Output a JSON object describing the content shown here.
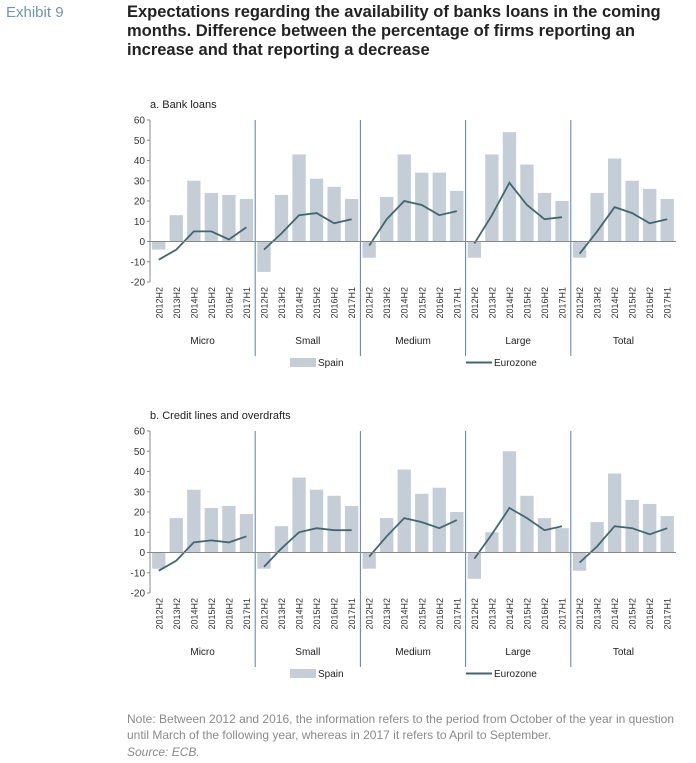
{
  "header": {
    "exhibit": "Exhibit 9",
    "title": "Expectations regarding the availability of banks loans in the coming months. Difference between the percentage of firms reporting an increase and that reporting a decrease"
  },
  "note": "Note: Between 2012 and 2016, the information refers to the period from October of the year in question until March of the following year, whereas in 2017 it refers to April to September.",
  "source": "Source: ECB.",
  "colors": {
    "bar": "#c5ced6",
    "line": "#3f6872",
    "separator": "#5b7fb5",
    "axis": "#888888"
  },
  "chart_data": [
    {
      "type": "bar",
      "title": "a. Bank loans",
      "ylim": [
        -20,
        60
      ],
      "yticks": [
        60,
        50,
        40,
        30,
        20,
        10,
        0,
        -10,
        -20
      ],
      "periods": [
        "2012H2",
        "2013H2",
        "2014H2",
        "2015H2",
        "2016H2",
        "2017H1"
      ],
      "groups": [
        {
          "name": "Micro",
          "spain": [
            -4,
            13,
            30,
            24,
            23,
            21
          ],
          "eurozone": [
            -9,
            -4,
            5,
            5,
            1,
            7
          ]
        },
        {
          "name": "Small",
          "spain": [
            -15,
            23,
            43,
            31,
            27,
            21
          ],
          "eurozone": [
            -4,
            4,
            13,
            14,
            9,
            11
          ]
        },
        {
          "name": "Medium",
          "spain": [
            -8,
            22,
            43,
            34,
            34,
            25
          ],
          "eurozone": [
            -2,
            11,
            20,
            18,
            13,
            15
          ]
        },
        {
          "name": "Large",
          "spain": [
            -8,
            43,
            54,
            38,
            24,
            20
          ],
          "eurozone": [
            -1,
            13,
            29,
            18,
            11,
            12
          ]
        },
        {
          "name": "Total",
          "spain": [
            -8,
            24,
            41,
            30,
            26,
            21
          ],
          "eurozone": [
            -6,
            5,
            17,
            14,
            9,
            11
          ]
        }
      ],
      "legend": {
        "bar": "Spain",
        "line": "Eurozone"
      }
    },
    {
      "type": "bar",
      "title": "b. Credit lines and overdrafts",
      "ylim": [
        -20,
        60
      ],
      "yticks": [
        60,
        50,
        40,
        30,
        20,
        10,
        0,
        -10,
        -20
      ],
      "periods": [
        "2012H2",
        "2013H2",
        "2014H2",
        "2015H2",
        "2016H2",
        "2017H1"
      ],
      "groups": [
        {
          "name": "Micro",
          "spain": [
            -8,
            17,
            31,
            22,
            23,
            19
          ],
          "eurozone": [
            -9,
            -4,
            5,
            6,
            5,
            8
          ]
        },
        {
          "name": "Small",
          "spain": [
            -8,
            13,
            37,
            31,
            28,
            23
          ],
          "eurozone": [
            -7,
            2,
            10,
            12,
            11,
            11
          ]
        },
        {
          "name": "Medium",
          "spain": [
            -8,
            17,
            41,
            29,
            32,
            20
          ],
          "eurozone": [
            -2,
            8,
            17,
            15,
            12,
            16
          ]
        },
        {
          "name": "Large",
          "spain": [
            -13,
            10,
            50,
            28,
            17,
            12
          ],
          "eurozone": [
            -3,
            9,
            22,
            17,
            11,
            13
          ]
        },
        {
          "name": "Total",
          "spain": [
            -9,
            15,
            39,
            26,
            24,
            18
          ],
          "eurozone": [
            -5,
            3,
            13,
            12,
            9,
            12
          ]
        }
      ],
      "legend": {
        "bar": "Spain",
        "line": "Eurozone"
      }
    }
  ]
}
